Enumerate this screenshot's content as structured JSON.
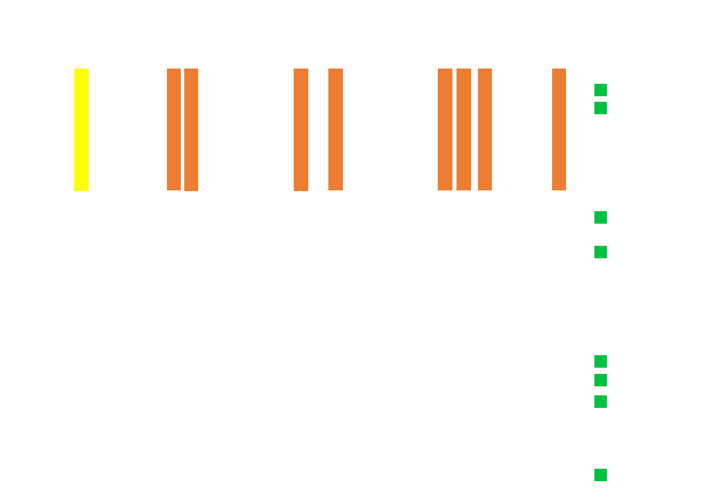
{
  "colors": {
    "background": "#ffffff",
    "highlight_bar": "#ffff00",
    "bar": "#ed7d31",
    "marker": "#00c040"
  },
  "bars": [
    {
      "color_key": "highlight_bar"
    },
    {
      "color_key": "bar"
    },
    {
      "color_key": "bar"
    },
    {
      "color_key": "bar"
    },
    {
      "color_key": "bar"
    },
    {
      "color_key": "bar"
    },
    {
      "color_key": "bar"
    },
    {
      "color_key": "bar"
    },
    {
      "color_key": "bar"
    }
  ],
  "markers": [
    {
      "color_key": "marker"
    },
    {
      "color_key": "marker"
    },
    {
      "color_key": "marker"
    },
    {
      "color_key": "marker"
    },
    {
      "color_key": "marker"
    },
    {
      "color_key": "marker"
    },
    {
      "color_key": "marker"
    },
    {
      "color_key": "marker"
    }
  ]
}
